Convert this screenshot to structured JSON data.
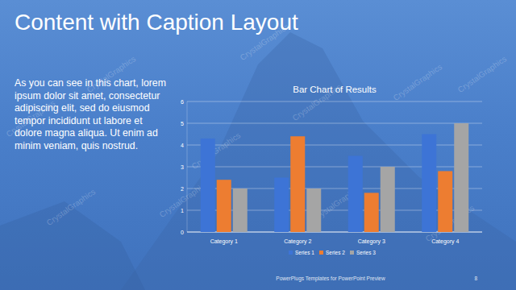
{
  "slide": {
    "title": "Content with Caption Layout",
    "caption": "As you can see in this chart, lorem ipsum dolor sit amet, consectetur adipiscing elit, sed do eiusmod tempor incididunt ut labore et dolore magna aliqua. Ut enim ad minim veniam, quis nostrud.",
    "footer": "PowerPlugs Templates for PowerPoint Preview",
    "page_number": 8,
    "watermark": "CrystalGraphics"
  },
  "chart_data": {
    "type": "bar",
    "title": "Bar Chart of Results",
    "categories": [
      "Category 1",
      "Category 2",
      "Category 3",
      "Category 4"
    ],
    "series": [
      {
        "name": "Series 1",
        "color": "#3d74d6",
        "values": [
          4.3,
          2.5,
          3.5,
          4.5
        ]
      },
      {
        "name": "Series 2",
        "color": "#ed7d31",
        "values": [
          2.4,
          4.4,
          1.8,
          2.8
        ]
      },
      {
        "name": "Series 3",
        "color": "#a5a5a5",
        "values": [
          2,
          2,
          3,
          5
        ]
      }
    ],
    "ylim": [
      0,
      6
    ],
    "yticks": [
      0,
      1,
      2,
      3,
      4,
      5,
      6
    ],
    "grid": true,
    "legend": "bottom"
  }
}
